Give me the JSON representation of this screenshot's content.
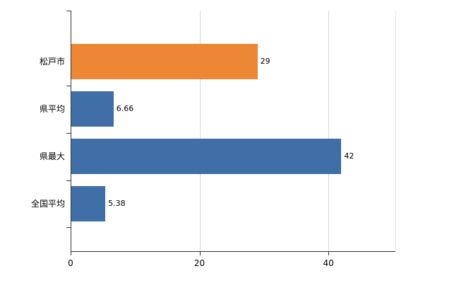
{
  "chart_data": {
    "type": "bar",
    "orientation": "horizontal",
    "title": "",
    "xlabel": "",
    "ylabel": "",
    "categories": [
      "松戸市",
      "県平均",
      "県最大",
      "全国平均"
    ],
    "values": [
      29,
      6.66,
      42,
      5.38
    ],
    "value_labels": [
      "29",
      "6.66",
      "42",
      "5.38"
    ],
    "bar_colors": [
      "#ed8733",
      "#3f6fa6",
      "#3f6fa6",
      "#3f6fa6"
    ],
    "xlim": [
      0,
      50.4
    ],
    "x_ticks": [
      0,
      20,
      40
    ],
    "grid": true,
    "legend": "none"
  },
  "colors": {
    "axis": "#333333",
    "grid": "#d9d9d9",
    "grid_light": "#e6e6e6",
    "label": "#000000",
    "background": "#ffffff",
    "orange": "#ed8733",
    "blue": "#3f6fa6"
  }
}
